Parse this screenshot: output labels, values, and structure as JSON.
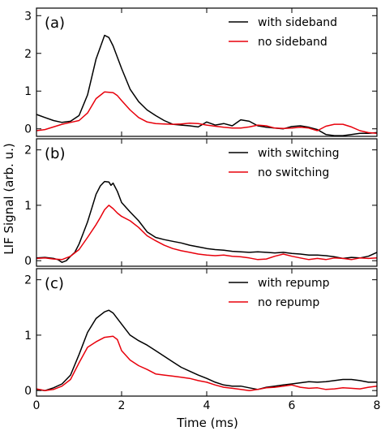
{
  "figure": {
    "xlabel": "Time (ms)",
    "ylabel": "LIF Signal (arb. u.)"
  },
  "colors": {
    "series1": "#000000",
    "series2": "#e8000b"
  },
  "chart_data": [
    {
      "type": "line",
      "panel_label": "(a)",
      "xlim": [
        0,
        8
      ],
      "ylim": [
        -0.2,
        3.2
      ],
      "xticks": [
        0,
        2,
        4,
        6,
        8
      ],
      "yticks": [
        0,
        1,
        2,
        3
      ],
      "legend": "top-right",
      "grid": false,
      "series": [
        {
          "name": "with sideband",
          "color": "#000000",
          "points": [
            [
              0,
              0.38
            ],
            [
              0.2,
              0.3
            ],
            [
              0.4,
              0.22
            ],
            [
              0.6,
              0.17
            ],
            [
              0.8,
              0.2
            ],
            [
              1.0,
              0.35
            ],
            [
              1.2,
              0.9
            ],
            [
              1.4,
              1.85
            ],
            [
              1.6,
              2.48
            ],
            [
              1.7,
              2.42
            ],
            [
              1.8,
              2.2
            ],
            [
              2.0,
              1.6
            ],
            [
              2.2,
              1.05
            ],
            [
              2.4,
              0.72
            ],
            [
              2.6,
              0.5
            ],
            [
              2.8,
              0.35
            ],
            [
              3.0,
              0.22
            ],
            [
              3.2,
              0.12
            ],
            [
              3.4,
              0.1
            ],
            [
              3.6,
              0.08
            ],
            [
              3.8,
              0.05
            ],
            [
              4.0,
              0.18
            ],
            [
              4.2,
              0.1
            ],
            [
              4.4,
              0.14
            ],
            [
              4.6,
              0.08
            ],
            [
              4.8,
              0.24
            ],
            [
              5.0,
              0.2
            ],
            [
              5.2,
              0.08
            ],
            [
              5.4,
              0.04
            ],
            [
              5.6,
              0.02
            ],
            [
              5.8,
              0.0
            ],
            [
              6.0,
              0.06
            ],
            [
              6.2,
              0.08
            ],
            [
              6.4,
              0.04
            ],
            [
              6.6,
              -0.02
            ],
            [
              6.8,
              -0.15
            ],
            [
              7.0,
              -0.18
            ],
            [
              7.2,
              -0.18
            ],
            [
              7.4,
              -0.15
            ],
            [
              7.6,
              -0.12
            ],
            [
              7.8,
              -0.12
            ],
            [
              8.0,
              -0.1
            ]
          ]
        },
        {
          "name": "no sideband",
          "color": "#e8000b",
          "points": [
            [
              0,
              -0.05
            ],
            [
              0.2,
              -0.02
            ],
            [
              0.4,
              0.05
            ],
            [
              0.6,
              0.12
            ],
            [
              0.8,
              0.17
            ],
            [
              1.0,
              0.22
            ],
            [
              1.2,
              0.42
            ],
            [
              1.4,
              0.8
            ],
            [
              1.6,
              0.98
            ],
            [
              1.8,
              0.96
            ],
            [
              1.9,
              0.88
            ],
            [
              2.0,
              0.75
            ],
            [
              2.2,
              0.5
            ],
            [
              2.4,
              0.3
            ],
            [
              2.6,
              0.18
            ],
            [
              2.8,
              0.14
            ],
            [
              3.0,
              0.13
            ],
            [
              3.2,
              0.12
            ],
            [
              3.4,
              0.13
            ],
            [
              3.6,
              0.15
            ],
            [
              3.8,
              0.14
            ],
            [
              4.0,
              0.1
            ],
            [
              4.2,
              0.07
            ],
            [
              4.4,
              0.04
            ],
            [
              4.6,
              0.02
            ],
            [
              4.8,
              0.02
            ],
            [
              5.0,
              0.05
            ],
            [
              5.2,
              0.1
            ],
            [
              5.4,
              0.08
            ],
            [
              5.6,
              0.02
            ],
            [
              5.8,
              0.01
            ],
            [
              6.0,
              0.02
            ],
            [
              6.2,
              0.04
            ],
            [
              6.4,
              0.02
            ],
            [
              6.6,
              -0.05
            ],
            [
              6.8,
              0.07
            ],
            [
              7.0,
              0.12
            ],
            [
              7.2,
              0.12
            ],
            [
              7.4,
              0.05
            ],
            [
              7.6,
              -0.05
            ],
            [
              7.8,
              -0.1
            ],
            [
              8.0,
              -0.12
            ]
          ]
        }
      ]
    },
    {
      "type": "line",
      "panel_label": "(b)",
      "xlim": [
        0,
        8
      ],
      "ylim": [
        -0.1,
        2.2
      ],
      "xticks": [
        0,
        2,
        4,
        6,
        8
      ],
      "yticks": [
        0,
        1,
        2
      ],
      "legend": "top-right",
      "grid": false,
      "series": [
        {
          "name": "with switching",
          "color": "#000000",
          "points": [
            [
              0,
              0.05
            ],
            [
              0.2,
              0.06
            ],
            [
              0.4,
              0.04
            ],
            [
              0.5,
              0.02
            ],
            [
              0.6,
              -0.03
            ],
            [
              0.7,
              0.0
            ],
            [
              0.8,
              0.08
            ],
            [
              0.9,
              0.15
            ],
            [
              1.0,
              0.3
            ],
            [
              1.1,
              0.5
            ],
            [
              1.2,
              0.7
            ],
            [
              1.3,
              0.95
            ],
            [
              1.4,
              1.2
            ],
            [
              1.5,
              1.35
            ],
            [
              1.6,
              1.43
            ],
            [
              1.7,
              1.42
            ],
            [
              1.75,
              1.36
            ],
            [
              1.8,
              1.4
            ],
            [
              1.9,
              1.25
            ],
            [
              2.0,
              1.05
            ],
            [
              2.2,
              0.88
            ],
            [
              2.4,
              0.72
            ],
            [
              2.6,
              0.52
            ],
            [
              2.8,
              0.42
            ],
            [
              3.0,
              0.38
            ],
            [
              3.2,
              0.35
            ],
            [
              3.4,
              0.32
            ],
            [
              3.6,
              0.28
            ],
            [
              3.8,
              0.25
            ],
            [
              4.0,
              0.22
            ],
            [
              4.2,
              0.2
            ],
            [
              4.4,
              0.19
            ],
            [
              4.6,
              0.17
            ],
            [
              4.8,
              0.16
            ],
            [
              5.0,
              0.15
            ],
            [
              5.2,
              0.16
            ],
            [
              5.4,
              0.15
            ],
            [
              5.6,
              0.14
            ],
            [
              5.8,
              0.15
            ],
            [
              6.0,
              0.13
            ],
            [
              6.2,
              0.12
            ],
            [
              6.4,
              0.1
            ],
            [
              6.6,
              0.1
            ],
            [
              6.8,
              0.09
            ],
            [
              7.0,
              0.07
            ],
            [
              7.2,
              0.04
            ],
            [
              7.4,
              0.06
            ],
            [
              7.6,
              0.05
            ],
            [
              7.8,
              0.08
            ],
            [
              8.0,
              0.15
            ]
          ]
        },
        {
          "name": "no switching",
          "color": "#e8000b",
          "points": [
            [
              0,
              0.04
            ],
            [
              0.2,
              0.05
            ],
            [
              0.4,
              0.03
            ],
            [
              0.6,
              0.02
            ],
            [
              0.8,
              0.08
            ],
            [
              1.0,
              0.2
            ],
            [
              1.2,
              0.42
            ],
            [
              1.4,
              0.65
            ],
            [
              1.5,
              0.78
            ],
            [
              1.6,
              0.92
            ],
            [
              1.7,
              1.0
            ],
            [
              1.8,
              0.94
            ],
            [
              1.9,
              0.86
            ],
            [
              2.0,
              0.8
            ],
            [
              2.2,
              0.72
            ],
            [
              2.4,
              0.6
            ],
            [
              2.6,
              0.45
            ],
            [
              2.8,
              0.36
            ],
            [
              3.0,
              0.28
            ],
            [
              3.2,
              0.22
            ],
            [
              3.4,
              0.18
            ],
            [
              3.6,
              0.15
            ],
            [
              3.8,
              0.12
            ],
            [
              4.0,
              0.1
            ],
            [
              4.2,
              0.09
            ],
            [
              4.4,
              0.1
            ],
            [
              4.6,
              0.08
            ],
            [
              4.8,
              0.07
            ],
            [
              5.0,
              0.05
            ],
            [
              5.2,
              0.02
            ],
            [
              5.4,
              0.03
            ],
            [
              5.6,
              0.08
            ],
            [
              5.8,
              0.12
            ],
            [
              6.0,
              0.08
            ],
            [
              6.2,
              0.05
            ],
            [
              6.4,
              0.02
            ],
            [
              6.6,
              0.04
            ],
            [
              6.8,
              0.02
            ],
            [
              7.0,
              0.05
            ],
            [
              7.2,
              0.04
            ],
            [
              7.4,
              0.02
            ],
            [
              7.6,
              0.05
            ],
            [
              7.8,
              0.04
            ],
            [
              8.0,
              0.05
            ]
          ]
        }
      ]
    },
    {
      "type": "line",
      "panel_label": "(c)",
      "xlim": [
        0,
        8
      ],
      "ylim": [
        -0.1,
        2.2
      ],
      "xticks": [
        0,
        2,
        4,
        6,
        8
      ],
      "yticks": [
        0,
        1,
        2
      ],
      "legend": "top-right",
      "grid": false,
      "series": [
        {
          "name": "with repump",
          "color": "#000000",
          "points": [
            [
              0,
              0.02
            ],
            [
              0.2,
              0.0
            ],
            [
              0.4,
              0.05
            ],
            [
              0.6,
              0.12
            ],
            [
              0.8,
              0.28
            ],
            [
              1.0,
              0.65
            ],
            [
              1.2,
              1.05
            ],
            [
              1.4,
              1.3
            ],
            [
              1.6,
              1.42
            ],
            [
              1.7,
              1.45
            ],
            [
              1.8,
              1.4
            ],
            [
              2.0,
              1.2
            ],
            [
              2.2,
              1.0
            ],
            [
              2.4,
              0.9
            ],
            [
              2.6,
              0.82
            ],
            [
              2.8,
              0.72
            ],
            [
              3.0,
              0.62
            ],
            [
              3.2,
              0.52
            ],
            [
              3.4,
              0.42
            ],
            [
              3.6,
              0.35
            ],
            [
              3.8,
              0.28
            ],
            [
              4.0,
              0.22
            ],
            [
              4.2,
              0.15
            ],
            [
              4.4,
              0.1
            ],
            [
              4.6,
              0.08
            ],
            [
              4.8,
              0.08
            ],
            [
              5.0,
              0.05
            ],
            [
              5.2,
              0.02
            ],
            [
              5.4,
              0.06
            ],
            [
              5.6,
              0.08
            ],
            [
              5.8,
              0.1
            ],
            [
              6.0,
              0.12
            ],
            [
              6.2,
              0.14
            ],
            [
              6.4,
              0.16
            ],
            [
              6.6,
              0.15
            ],
            [
              6.8,
              0.16
            ],
            [
              7.0,
              0.18
            ],
            [
              7.2,
              0.2
            ],
            [
              7.4,
              0.2
            ],
            [
              7.6,
              0.18
            ],
            [
              7.8,
              0.15
            ],
            [
              8.0,
              0.15
            ]
          ]
        },
        {
          "name": "no repump",
          "color": "#e8000b",
          "points": [
            [
              0,
              0.03
            ],
            [
              0.2,
              0.0
            ],
            [
              0.4,
              0.02
            ],
            [
              0.6,
              0.08
            ],
            [
              0.8,
              0.2
            ],
            [
              1.0,
              0.5
            ],
            [
              1.2,
              0.78
            ],
            [
              1.4,
              0.88
            ],
            [
              1.6,
              0.96
            ],
            [
              1.8,
              0.98
            ],
            [
              1.9,
              0.92
            ],
            [
              2.0,
              0.72
            ],
            [
              2.2,
              0.55
            ],
            [
              2.4,
              0.45
            ],
            [
              2.6,
              0.38
            ],
            [
              2.8,
              0.3
            ],
            [
              3.0,
              0.28
            ],
            [
              3.2,
              0.26
            ],
            [
              3.4,
              0.24
            ],
            [
              3.6,
              0.22
            ],
            [
              3.8,
              0.18
            ],
            [
              4.0,
              0.15
            ],
            [
              4.2,
              0.1
            ],
            [
              4.4,
              0.06
            ],
            [
              4.6,
              0.04
            ],
            [
              4.8,
              0.02
            ],
            [
              5.0,
              0.0
            ],
            [
              5.2,
              0.02
            ],
            [
              5.4,
              0.05
            ],
            [
              5.6,
              0.06
            ],
            [
              5.8,
              0.08
            ],
            [
              6.0,
              0.1
            ],
            [
              6.2,
              0.06
            ],
            [
              6.4,
              0.04
            ],
            [
              6.6,
              0.05
            ],
            [
              6.8,
              0.02
            ],
            [
              7.0,
              0.03
            ],
            [
              7.2,
              0.05
            ],
            [
              7.4,
              0.04
            ],
            [
              7.6,
              0.03
            ],
            [
              7.8,
              0.06
            ],
            [
              8.0,
              0.08
            ]
          ]
        }
      ]
    }
  ]
}
